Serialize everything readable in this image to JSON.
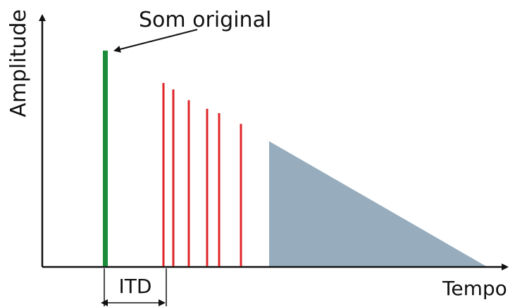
{
  "diagram": {
    "y_axis_label": "Amplitude",
    "x_axis_label": "Tempo",
    "annotation_label": "Som original",
    "interval_label": "ITD",
    "colors": {
      "axis": "#111111",
      "direct_sound": "#1a8c3a",
      "early_reflections": "#e0242a",
      "reverb_tail": "#97adbe"
    }
  },
  "chart_data": {
    "type": "bar",
    "xlabel": "Tempo",
    "ylabel": "Amplitude",
    "direct_sound": {
      "label": "Som original",
      "amplitude": 1.0
    },
    "early_reflections": {
      "amplitudes": [
        0.85,
        0.82,
        0.77,
        0.73,
        0.71,
        0.66
      ]
    },
    "reverb_tail": {
      "start_amplitude": 0.58,
      "end_amplitude": 0.0
    },
    "interval": {
      "label": "ITD"
    }
  }
}
